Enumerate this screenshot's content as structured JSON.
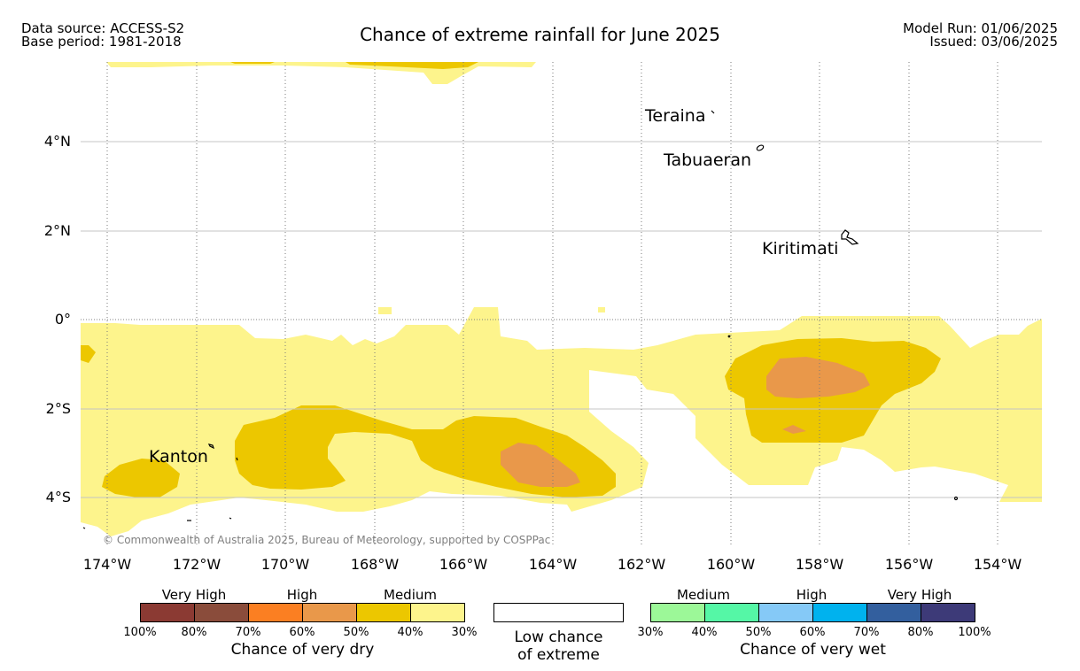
{
  "header": {
    "data_source": "Data source: ACCESS-S2",
    "base_period": "Base period: 1981-2018",
    "title": "Chance of extreme rainfall for June 2025",
    "model_run": "Model Run: 01/06/2025",
    "issued": "Issued: 03/06/2025"
  },
  "map": {
    "lat_labels": [
      "4°N",
      "2°N",
      "0°",
      "2°S",
      "4°S"
    ],
    "lon_labels": [
      "174°W",
      "172°W",
      "170°W",
      "168°W",
      "166°W",
      "164°W",
      "162°W",
      "160°W",
      "158°W",
      "156°W",
      "154°W"
    ],
    "places": [
      "Teraina",
      "Tabuaeran",
      "Kiritimati",
      "Kanton"
    ],
    "credit": "© Commonwealth of Australia 2025, Bureau of Meteorology, supported by COSPPac",
    "colors": {
      "dry_medium_low": "#fdf48c",
      "dry_medium_high": "#ecc700",
      "dry_high_low": "#e9984a"
    }
  },
  "legend": {
    "dry": {
      "categories": [
        "Very High",
        "High",
        "Medium"
      ],
      "ticks": [
        "100%",
        "80%",
        "70%",
        "60%",
        "50%",
        "40%",
        "30%"
      ],
      "colors": [
        "#8b3a33",
        "#8a4c3b",
        "#fb7f22",
        "#e9984a",
        "#ecc700",
        "#fdf48c"
      ],
      "title": "Chance of very dry"
    },
    "neutral": {
      "line1": "Low chance",
      "line2": "of extreme"
    },
    "wet": {
      "categories": [
        "Medium",
        "High",
        "Very High"
      ],
      "ticks": [
        "30%",
        "40%",
        "50%",
        "60%",
        "70%",
        "80%",
        "100%"
      ],
      "colors": [
        "#9cf898",
        "#55f7a6",
        "#85c9f7",
        "#00b2ee",
        "#335f9e",
        "#3d3a78"
      ],
      "title": "Chance of very wet"
    }
  }
}
